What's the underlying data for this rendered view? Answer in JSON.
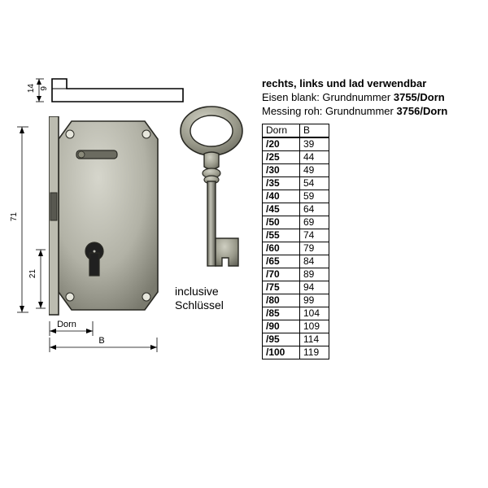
{
  "profile": {
    "dim_outer": "14",
    "dim_inner": "9"
  },
  "main_view": {
    "dim_height": "71",
    "dim_keyhole": "21",
    "dim_dorn_label": "Dorn",
    "dim_b_label": "B"
  },
  "key": {
    "label_line1": "inclusive",
    "label_line2": "Schlüssel"
  },
  "header": {
    "line1": "rechts, links und lad verwendbar",
    "line2_a": "Eisen blank: Grundnummer ",
    "line2_b": "3755/Dorn",
    "line3_a": "Messing roh: Grundnummer ",
    "line3_b": "3756/Dorn"
  },
  "table": {
    "columns": [
      "Dorn",
      "B"
    ],
    "rows": [
      [
        "/20",
        "39"
      ],
      [
        "/25",
        "44"
      ],
      [
        "/30",
        "49"
      ],
      [
        "/35",
        "54"
      ],
      [
        "/40",
        "59"
      ],
      [
        "/45",
        "64"
      ],
      [
        "/50",
        "69"
      ],
      [
        "/55",
        "74"
      ],
      [
        "/60",
        "79"
      ],
      [
        "/65",
        "84"
      ],
      [
        "/70",
        "89"
      ],
      [
        "/75",
        "94"
      ],
      [
        "/80",
        "99"
      ],
      [
        "/85",
        "104"
      ],
      [
        "/90",
        "109"
      ],
      [
        "/95",
        "114"
      ],
      [
        "/100",
        "119"
      ]
    ]
  },
  "colors": {
    "metal_light": "#c8c8be",
    "metal_mid": "#a2a296",
    "metal_dark": "#6b6b60",
    "key_metal": "#8a8a7a",
    "outline": "#2a2a24",
    "white": "#ffffff",
    "black": "#000000"
  },
  "styling": {
    "body_font": "Arial, sans-serif",
    "table_font_size": 12,
    "header_font_size": 13,
    "dim_font_size": 10,
    "stroke_width_drawing": 1.6,
    "stroke_width_dim": 0.8
  }
}
